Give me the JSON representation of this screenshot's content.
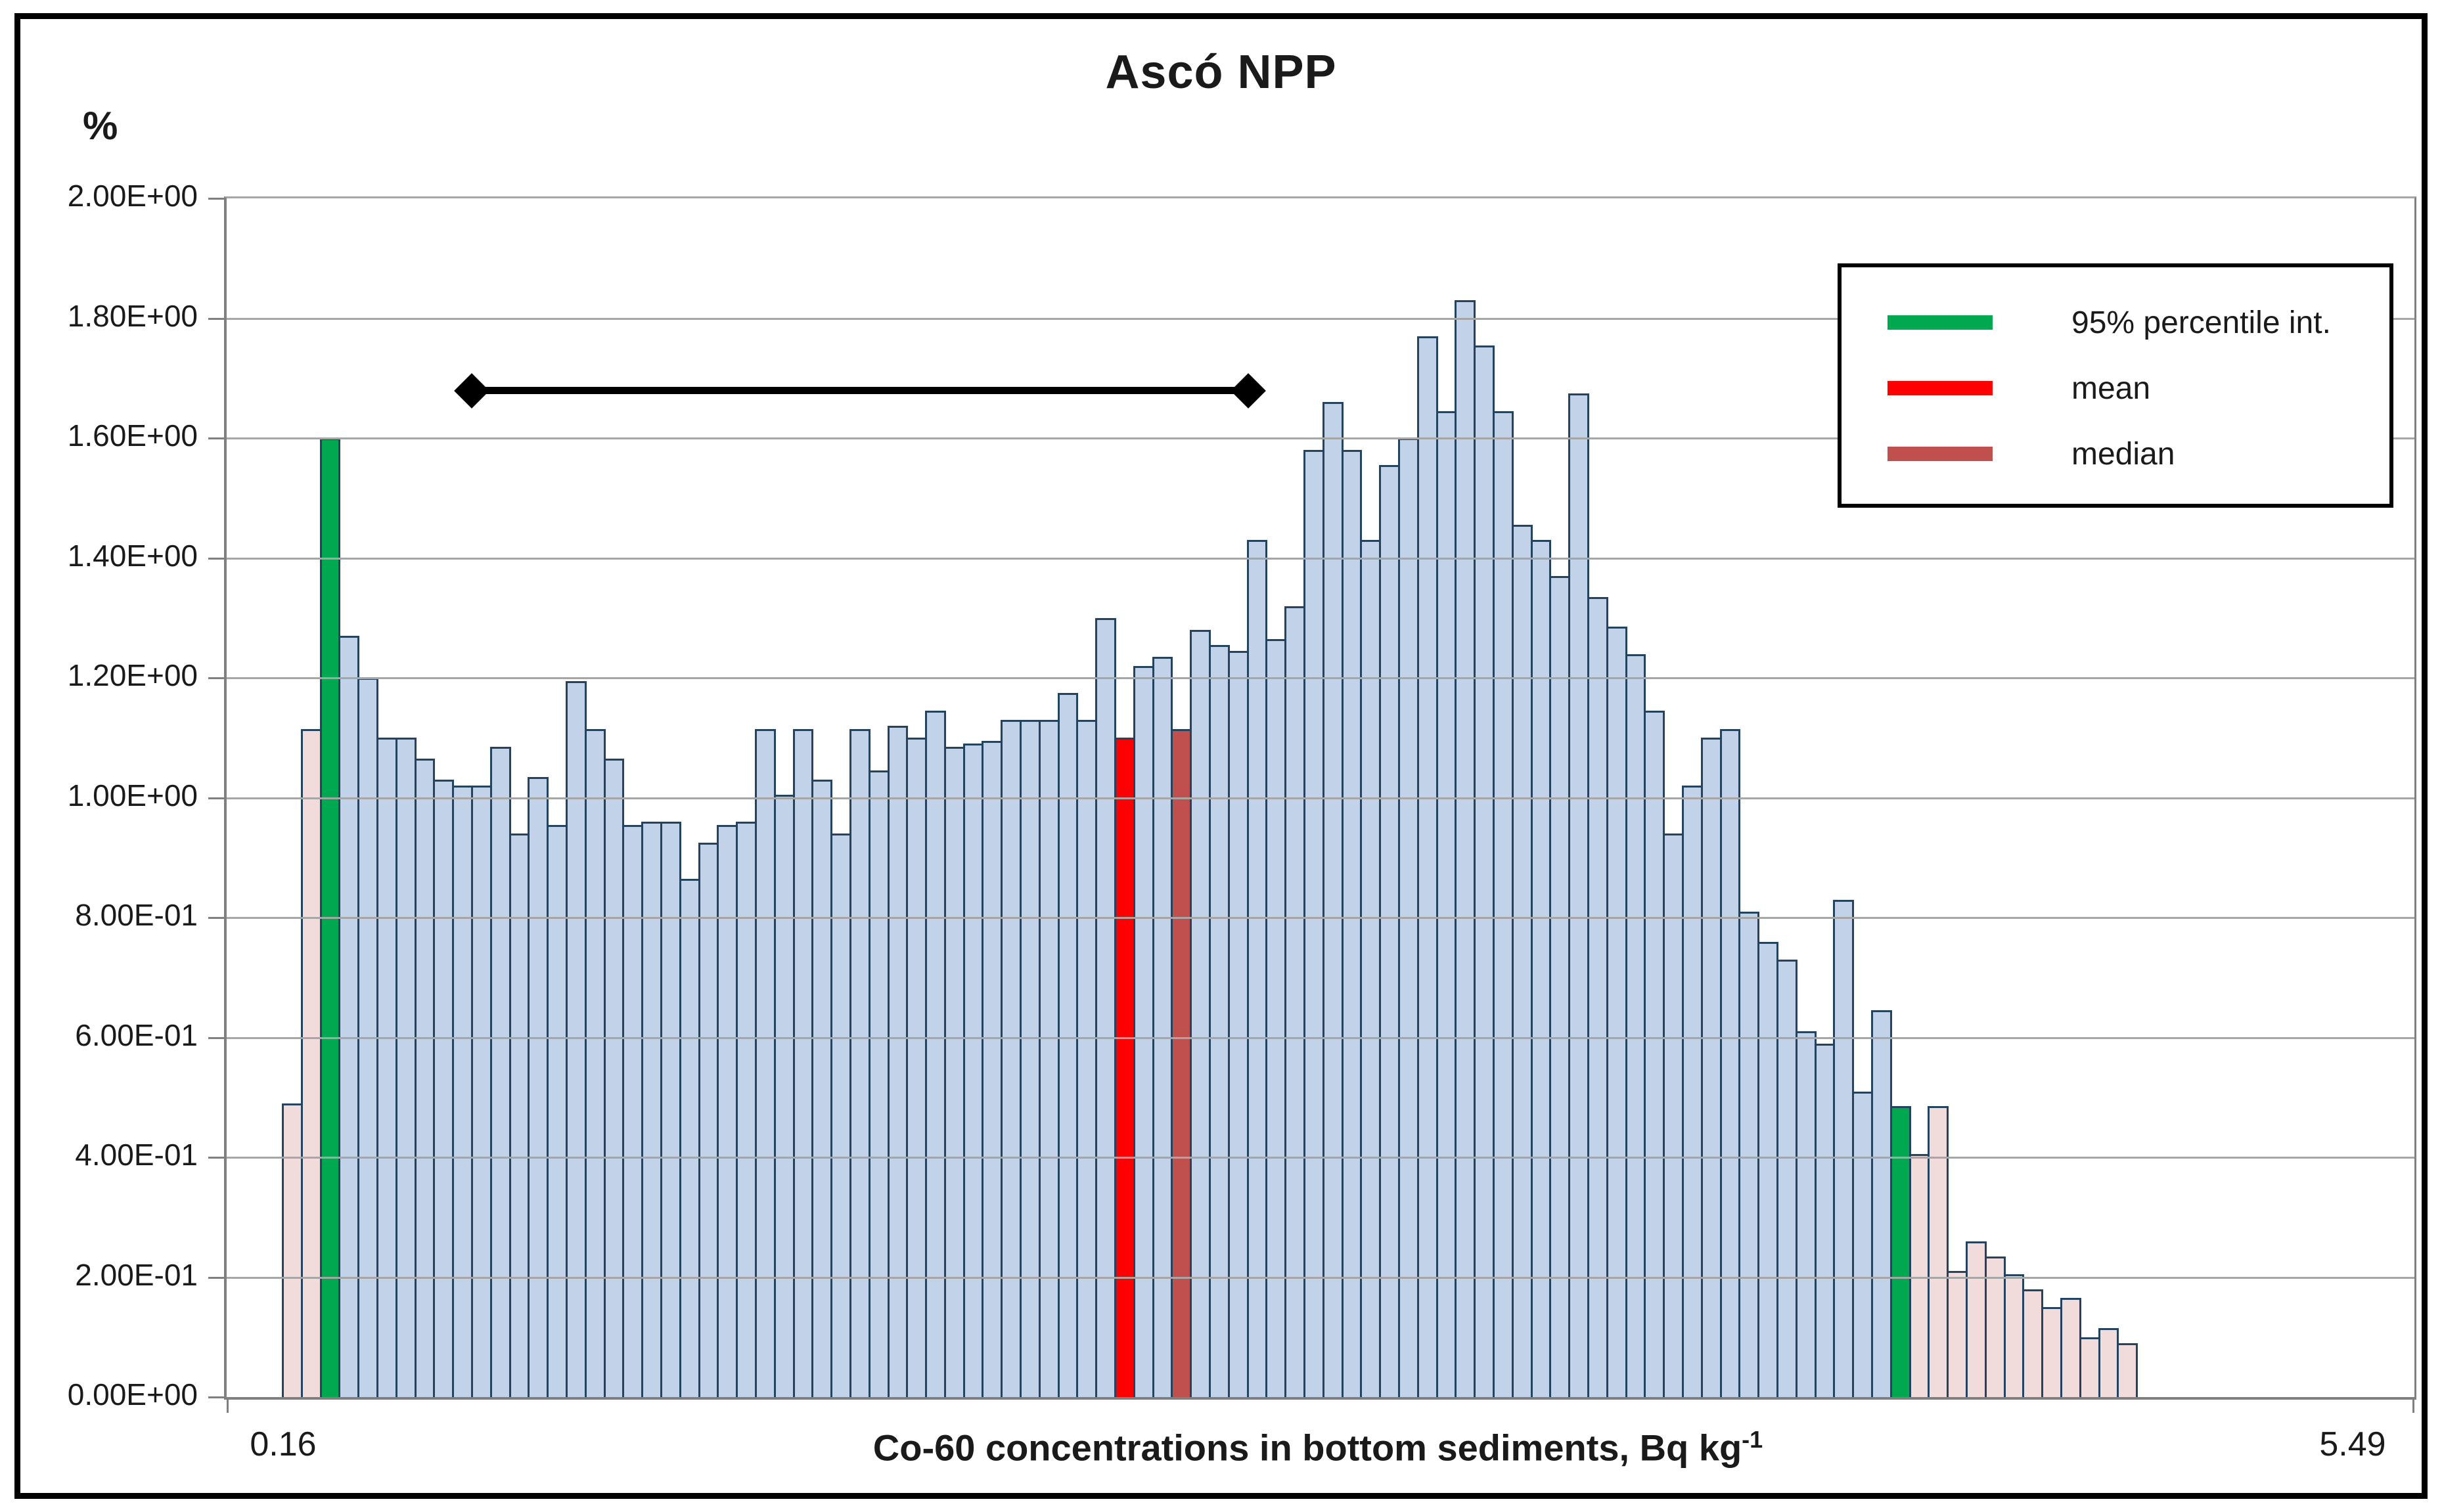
{
  "figure": {
    "title": "Ascó NPP",
    "background_color": "#ffffff",
    "frame_color": "#000000"
  },
  "chart_data": {
    "type": "bar",
    "title": "Ascó NPP",
    "ylabel": "%",
    "xlabel": "Co-60 concentrations in bottom sediments, Bq kg",
    "xlabel_superscript": "-1",
    "x_first_tick": "0.16",
    "x_last_tick": "5.49",
    "ylim": [
      0,
      2
    ],
    "grid": true,
    "y_tick_labels": [
      "2.00E+00",
      "1.80E+00",
      "1.60E+00",
      "1.40E+00",
      "1.20E+00",
      "1.00E+00",
      "8.00E-01",
      "6.00E-01",
      "4.00E-01",
      "2.00E-01",
      "0.00E+00"
    ],
    "values": [
      0.49,
      1.115,
      1.6,
      1.27,
      1.2,
      1.1,
      1.1,
      1.065,
      1.03,
      1.02,
      1.02,
      1.085,
      0.94,
      1.035,
      0.955,
      1.195,
      1.115,
      1.065,
      0.955,
      0.96,
      0.96,
      0.865,
      0.925,
      0.955,
      0.96,
      1.115,
      1.005,
      1.115,
      1.03,
      0.94,
      1.115,
      1.045,
      1.12,
      1.1,
      1.145,
      1.085,
      1.09,
      1.095,
      1.13,
      1.13,
      1.13,
      1.175,
      1.13,
      1.3,
      1.1,
      1.22,
      1.235,
      1.115,
      1.28,
      1.255,
      1.245,
      1.43,
      1.265,
      1.32,
      1.58,
      1.66,
      1.58,
      1.43,
      1.555,
      1.6,
      1.77,
      1.645,
      1.83,
      1.755,
      1.645,
      1.455,
      1.43,
      1.37,
      1.675,
      1.335,
      1.285,
      1.24,
      1.145,
      0.94,
      1.02,
      1.1,
      1.115,
      0.81,
      0.76,
      0.73,
      0.61,
      0.59,
      0.83,
      0.51,
      0.645,
      0.485,
      0.405,
      0.485,
      0.21,
      0.26,
      0.235,
      0.205,
      0.18,
      0.15,
      0.165,
      0.1,
      0.115,
      0.09
    ],
    "colors": [
      "pink",
      "pink",
      "green",
      "blue",
      "blue",
      "blue",
      "blue",
      "blue",
      "blue",
      "blue",
      "blue",
      "blue",
      "blue",
      "blue",
      "blue",
      "blue",
      "blue",
      "blue",
      "blue",
      "blue",
      "blue",
      "blue",
      "blue",
      "blue",
      "blue",
      "blue",
      "blue",
      "blue",
      "blue",
      "blue",
      "blue",
      "blue",
      "blue",
      "blue",
      "blue",
      "blue",
      "blue",
      "blue",
      "blue",
      "blue",
      "blue",
      "blue",
      "blue",
      "blue",
      "red",
      "blue",
      "blue",
      "brown",
      "blue",
      "blue",
      "blue",
      "blue",
      "blue",
      "blue",
      "blue",
      "blue",
      "blue",
      "blue",
      "blue",
      "blue",
      "blue",
      "blue",
      "blue",
      "blue",
      "blue",
      "blue",
      "blue",
      "blue",
      "blue",
      "blue",
      "blue",
      "blue",
      "blue",
      "blue",
      "blue",
      "blue",
      "blue",
      "blue",
      "blue",
      "blue",
      "blue",
      "blue",
      "blue",
      "blue",
      "blue",
      "green",
      "pink",
      "pink",
      "pink",
      "pink",
      "pink",
      "pink",
      "pink",
      "pink",
      "pink",
      "pink",
      "pink",
      "pink"
    ],
    "color_map": {
      "blue": "#c2d2e8",
      "pink": "#f2dcdb",
      "green": "#00a94f",
      "red": "#ff0000",
      "brown": "#c0504d",
      "bar_border": "#24435f",
      "gridline": "#a6a6a6",
      "axis": "#808080"
    },
    "legend": {
      "position": "top-right",
      "items": [
        {
          "label": "95% percentile int.",
          "color_key": "green"
        },
        {
          "label": "mean",
          "color_key": "red"
        },
        {
          "label": "median",
          "color_key": "brown"
        }
      ]
    },
    "annotations": {
      "interval_line": {
        "y_value": 1.68,
        "x_start_frac": 0.111,
        "x_end_frac": 0.468,
        "color": "#000000",
        "marker": "diamond"
      }
    }
  }
}
